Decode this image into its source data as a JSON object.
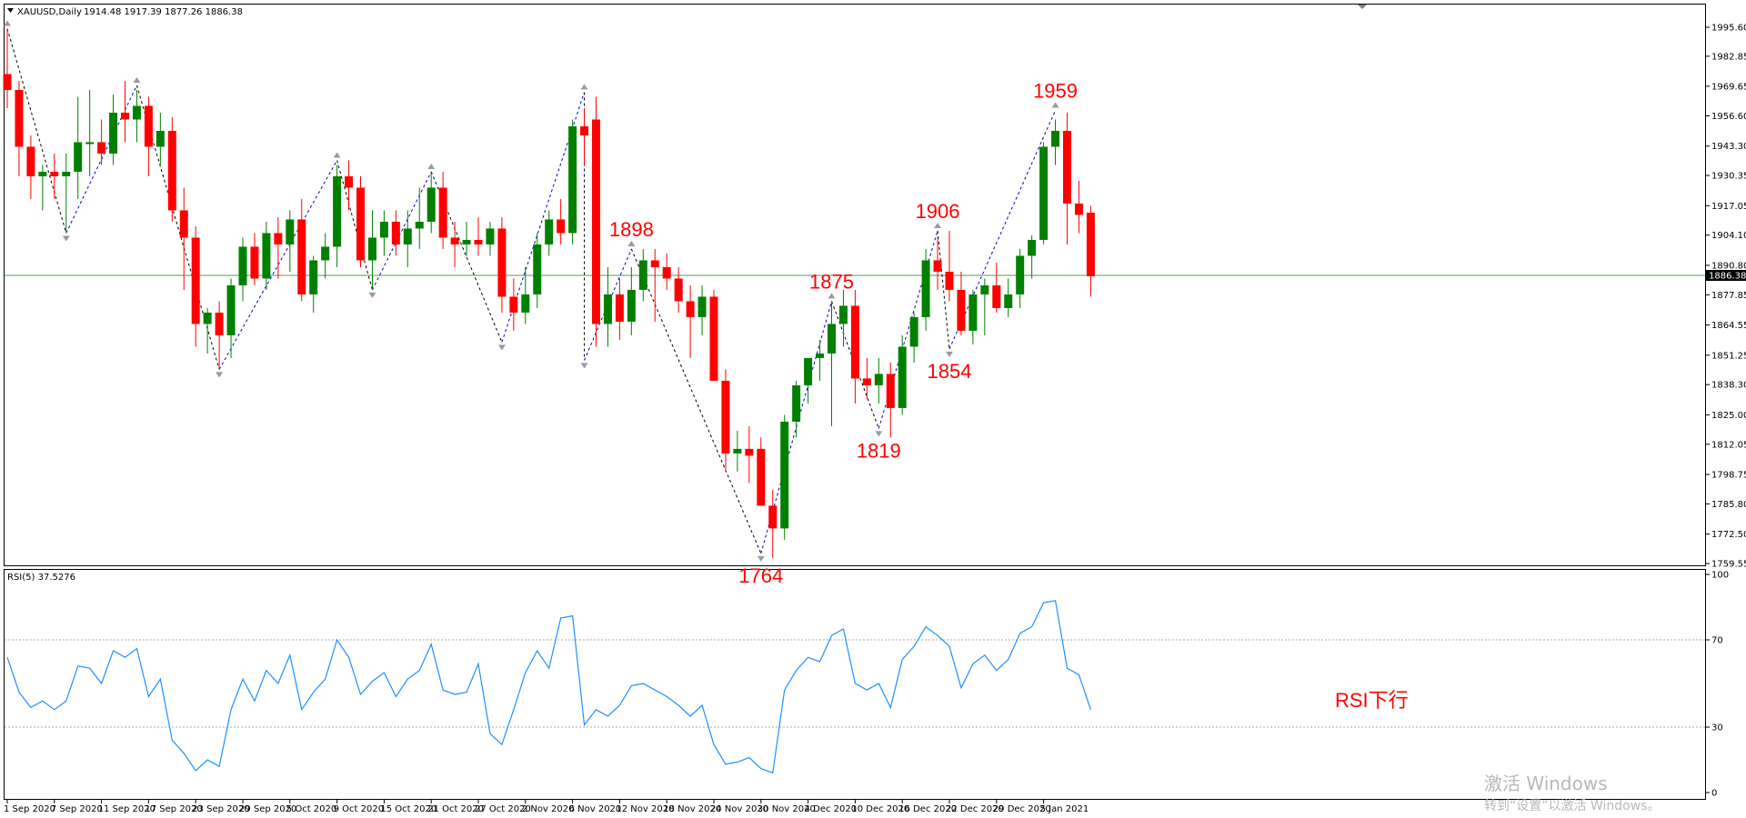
{
  "header": {
    "symbol": "XAUUSD,Daily",
    "ohlc": "1914.48 1917.39 1877.26 1886.38"
  },
  "rsi_header": "RSI(5) 37.5276",
  "current_price_label": "1886.38",
  "colors": {
    "bull": "#008000",
    "bear": "#ff0000",
    "rsi_line": "#1e90ff",
    "annotation": "#ff0000"
  },
  "watermark": {
    "line1": "激活 Windows",
    "line2": "转到“设置”以激活 Windows。"
  },
  "chart_data": [
    {
      "type": "candlestick",
      "ylim": [
        1759.55,
        2002
      ],
      "y_ticks": [
        "1995.60",
        "1982.85",
        "1969.65",
        "1956.60",
        "1943.30",
        "1930.35",
        "1917.05",
        "1904.10",
        "1890.80",
        "1877.85",
        "1864.55",
        "1851.25",
        "1838.30",
        "1825.00",
        "1812.05",
        "1798.75",
        "1785.80",
        "1772.50",
        "1759.55"
      ],
      "x_ticks": [
        "1 Sep 2020",
        "7 Sep 2020",
        "11 Sep 2020",
        "17 Sep 2020",
        "23 Sep 2020",
        "29 Sep 2020",
        "5 Oct 2020",
        "9 Oct 2020",
        "15 Oct 2020",
        "21 Oct 2020",
        "27 Oct 2020",
        "2 Nov 2020",
        "6 Nov 2020",
        "12 Nov 2020",
        "18 Nov 2020",
        "24 Nov 2020",
        "30 Nov 2020",
        "4 Dec 2020",
        "10 Dec 2020",
        "16 Dec 2020",
        "22 Dec 2020",
        "29 Dec 2020",
        "5 Jan 2021"
      ],
      "current_price": 1886.38,
      "annotations": [
        {
          "text": "1898",
          "bar": 53,
          "price": 1898,
          "pos": "above"
        },
        {
          "text": "1764",
          "bar": 64,
          "price": 1764,
          "pos": "below"
        },
        {
          "text": "1875",
          "bar": 70,
          "price": 1875,
          "pos": "above"
        },
        {
          "text": "1819",
          "bar": 74,
          "price": 1819,
          "pos": "below"
        },
        {
          "text": "1906",
          "bar": 79,
          "price": 1906,
          "pos": "above"
        },
        {
          "text": "1854",
          "bar": 80,
          "price": 1854,
          "pos": "below"
        },
        {
          "text": "1959",
          "bar": 89,
          "price": 1959,
          "pos": "above"
        }
      ],
      "zigzag": [
        [
          0,
          1995
        ],
        [
          5,
          1905
        ],
        [
          11,
          1970
        ],
        [
          18,
          1845
        ],
        [
          28,
          1937
        ],
        [
          31,
          1880
        ],
        [
          36,
          1932
        ],
        [
          42,
          1857
        ],
        [
          49,
          1967
        ],
        [
          49,
          1849
        ],
        [
          53,
          1898
        ],
        [
          64,
          1764
        ],
        [
          70,
          1875
        ],
        [
          74,
          1819
        ],
        [
          79,
          1906
        ],
        [
          80,
          1854
        ],
        [
          89,
          1959
        ]
      ],
      "candles": [
        [
          1975,
          1995,
          1960,
          1968
        ],
        [
          1968,
          1972,
          1930,
          1943
        ],
        [
          1943,
          1948,
          1920,
          1930
        ],
        [
          1930,
          1935,
          1915,
          1932
        ],
        [
          1932,
          1940,
          1920,
          1930
        ],
        [
          1930,
          1940,
          1905,
          1932
        ],
        [
          1932,
          1965,
          1920,
          1945
        ],
        [
          1945,
          1968,
          1930,
          1945
        ],
        [
          1945,
          1955,
          1935,
          1940
        ],
        [
          1940,
          1966,
          1935,
          1958
        ],
        [
          1958,
          1972,
          1945,
          1955
        ],
        [
          1955,
          1968,
          1945,
          1961
        ],
        [
          1961,
          1965,
          1930,
          1943
        ],
        [
          1943,
          1958,
          1935,
          1950
        ],
        [
          1950,
          1956,
          1910,
          1915
        ],
        [
          1915,
          1925,
          1880,
          1903
        ],
        [
          1903,
          1908,
          1855,
          1865
        ],
        [
          1865,
          1872,
          1852,
          1870
        ],
        [
          1870,
          1875,
          1845,
          1860
        ],
        [
          1860,
          1885,
          1850,
          1882
        ],
        [
          1882,
          1903,
          1875,
          1899
        ],
        [
          1899,
          1905,
          1882,
          1885
        ],
        [
          1885,
          1910,
          1880,
          1905
        ],
        [
          1905,
          1912,
          1885,
          1900
        ],
        [
          1900,
          1915,
          1888,
          1911
        ],
        [
          1911,
          1920,
          1875,
          1878
        ],
        [
          1878,
          1895,
          1870,
          1893
        ],
        [
          1893,
          1905,
          1885,
          1899
        ],
        [
          1899,
          1935,
          1890,
          1930
        ],
        [
          1930,
          1937,
          1915,
          1925
        ],
        [
          1925,
          1930,
          1890,
          1893
        ],
        [
          1893,
          1915,
          1880,
          1903
        ],
        [
          1903,
          1915,
          1895,
          1910
        ],
        [
          1910,
          1915,
          1895,
          1900
        ],
        [
          1900,
          1915,
          1890,
          1907
        ],
        [
          1907,
          1925,
          1898,
          1910
        ],
        [
          1910,
          1932,
          1905,
          1925
        ],
        [
          1925,
          1932,
          1898,
          1903
        ],
        [
          1903,
          1910,
          1890,
          1900
        ],
        [
          1900,
          1910,
          1895,
          1902
        ],
        [
          1902,
          1912,
          1895,
          1900
        ],
        [
          1900,
          1910,
          1895,
          1907
        ],
        [
          1907,
          1912,
          1870,
          1877
        ],
        [
          1877,
          1885,
          1862,
          1870
        ],
        [
          1870,
          1890,
          1865,
          1878
        ],
        [
          1878,
          1905,
          1872,
          1900
        ],
        [
          1900,
          1915,
          1895,
          1911
        ],
        [
          1911,
          1920,
          1900,
          1905
        ],
        [
          1905,
          1955,
          1900,
          1952
        ],
        [
          1952,
          1960,
          1935,
          1948
        ],
        [
          1955,
          1965,
          1855,
          1865
        ],
        [
          1865,
          1890,
          1855,
          1878
        ],
        [
          1878,
          1885,
          1858,
          1866
        ],
        [
          1866,
          1890,
          1860,
          1880
        ],
        [
          1880,
          1898,
          1875,
          1893
        ],
        [
          1893,
          1898,
          1866,
          1890
        ],
        [
          1890,
          1896,
          1880,
          1885
        ],
        [
          1885,
          1890,
          1870,
          1875
        ],
        [
          1875,
          1882,
          1850,
          1868
        ],
        [
          1868,
          1882,
          1860,
          1877
        ],
        [
          1877,
          1880,
          1840,
          1840
        ],
        [
          1840,
          1845,
          1800,
          1808
        ],
        [
          1808,
          1818,
          1800,
          1810
        ],
        [
          1810,
          1820,
          1795,
          1807
        ],
        [
          1810,
          1815,
          1785,
          1785
        ],
        [
          1785,
          1792,
          1762,
          1775
        ],
        [
          1775,
          1825,
          1770,
          1822
        ],
        [
          1822,
          1840,
          1815,
          1838
        ],
        [
          1838,
          1850,
          1830,
          1850
        ],
        [
          1850,
          1858,
          1840,
          1852
        ],
        [
          1852,
          1875,
          1820,
          1865
        ],
        [
          1865,
          1880,
          1855,
          1873
        ],
        [
          1873,
          1880,
          1830,
          1841
        ],
        [
          1841,
          1850,
          1832,
          1838
        ],
        [
          1838,
          1850,
          1830,
          1843
        ],
        [
          1843,
          1848,
          1815,
          1828
        ],
        [
          1828,
          1860,
          1825,
          1855
        ],
        [
          1855,
          1870,
          1848,
          1868
        ],
        [
          1868,
          1898,
          1862,
          1893
        ],
        [
          1893,
          1903,
          1880,
          1888
        ],
        [
          1888,
          1906,
          1875,
          1880
        ],
        [
          1880,
          1888,
          1860,
          1862
        ],
        [
          1862,
          1880,
          1856,
          1878
        ],
        [
          1878,
          1885,
          1860,
          1882
        ],
        [
          1882,
          1892,
          1870,
          1872
        ],
        [
          1872,
          1885,
          1868,
          1878
        ],
        [
          1878,
          1898,
          1872,
          1895
        ],
        [
          1895,
          1904,
          1885,
          1902
        ],
        [
          1902,
          1945,
          1900,
          1943
        ],
        [
          1943,
          1955,
          1935,
          1950
        ],
        [
          1950,
          1958,
          1900,
          1918
        ],
        [
          1918,
          1928,
          1905,
          1913
        ],
        [
          1914,
          1917,
          1877,
          1886
        ]
      ]
    },
    {
      "type": "line",
      "title": "RSI(5) 37.5276",
      "ylim": [
        0,
        100
      ],
      "y_ticks": [
        "100",
        "70",
        "30",
        "0"
      ],
      "levels": [
        70,
        30
      ],
      "values": [
        62,
        46,
        39,
        42,
        38,
        42,
        58,
        57,
        50,
        65,
        62,
        66,
        44,
        52,
        24,
        18,
        10,
        15,
        12,
        38,
        52,
        42,
        56,
        50,
        63,
        38,
        46,
        52,
        70,
        62,
        45,
        51,
        55,
        44,
        52,
        56,
        68,
        47,
        45,
        46,
        59,
        27,
        22,
        38,
        55,
        65,
        57,
        80,
        81,
        31,
        38,
        35,
        40,
        49,
        50,
        47,
        44,
        40,
        35,
        40,
        22,
        13,
        14,
        16,
        11,
        9,
        47,
        56,
        62,
        60,
        72,
        75,
        50,
        47,
        50,
        39,
        61,
        67,
        76,
        72,
        67,
        48,
        59,
        63,
        56,
        61,
        73,
        76,
        87,
        88,
        57,
        54,
        38
      ]
    }
  ]
}
